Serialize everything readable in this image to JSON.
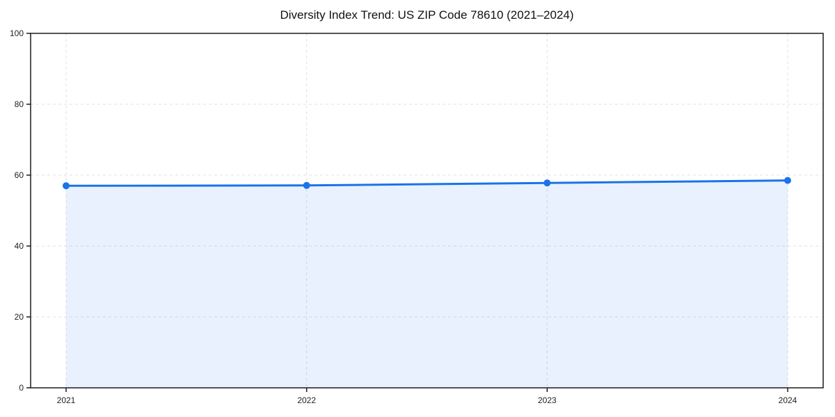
{
  "figure": {
    "background": "#ffffff"
  },
  "chart_data": {
    "type": "area",
    "title": "Diversity Index Trend: US ZIP Code 78610 (2021–2024)",
    "categories": [
      "2021",
      "2022",
      "2023",
      "2024"
    ],
    "series": [
      {
        "name": "Diversity Index",
        "values": [
          57.0,
          57.1,
          57.8,
          58.5
        ]
      }
    ],
    "xlabel": "",
    "ylabel": "",
    "ylim": [
      0,
      100
    ],
    "yticks": [
      0,
      20,
      40,
      60,
      80,
      100
    ],
    "grid": true,
    "grid_style": "dashed",
    "legend": "none",
    "marker": "circle",
    "line_width": 3,
    "marker_radius": 5,
    "colors": {
      "line": "#1a73e8",
      "marker": "#1a73e8",
      "fill": "#1a73e8",
      "fill_opacity": 0.1,
      "grid": "#e0e0e0",
      "spine": "#1a1a1a",
      "title_text": "#111111",
      "tick_text": "#222222"
    }
  }
}
